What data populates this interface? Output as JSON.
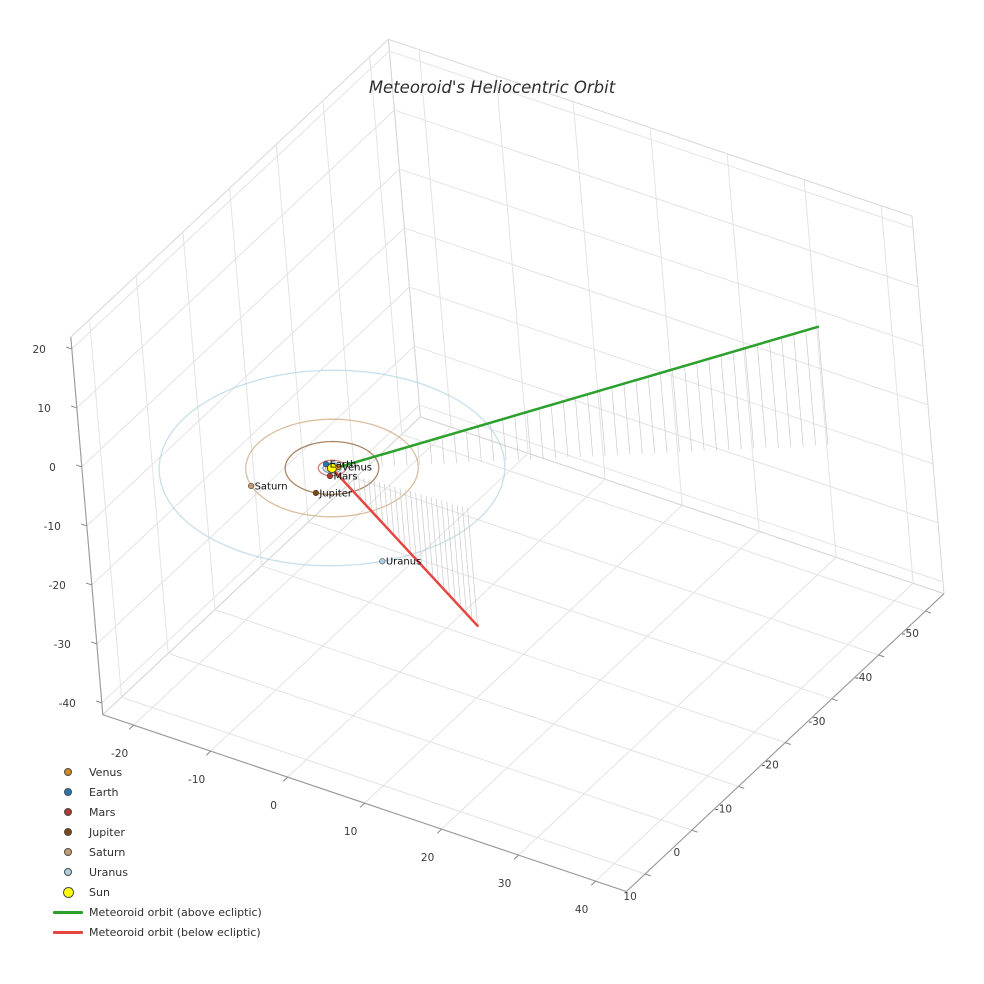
{
  "title": "Meteoroid's Heliocentric Orbit",
  "chart_data": {
    "type": "line",
    "projection": "3d",
    "title": "Meteoroid's Heliocentric Orbit",
    "grid": true,
    "axes": {
      "x": {
        "ticks": [
          -20,
          -10,
          0,
          10,
          20,
          30,
          40
        ],
        "range": [
          -24,
          44
        ]
      },
      "y": {
        "ticks": [
          -50,
          -40,
          -30,
          -20,
          -10,
          0,
          10
        ],
        "range": [
          -54,
          14
        ]
      },
      "z": {
        "ticks": [
          -40,
          -30,
          -20,
          -10,
          0,
          10,
          20
        ],
        "range": [
          -42,
          22
        ]
      }
    },
    "sun": {
      "name": "Sun",
      "color": "#ffff00",
      "position": [
        0,
        0,
        0
      ]
    },
    "planets": [
      {
        "name": "Jupiter",
        "color": "#7b4a12",
        "orbit_radius": 5.2,
        "position": [
          1.0,
          5.1,
          0
        ]
      },
      {
        "name": "Saturn",
        "color": "#c69c6d",
        "orbit_radius": 9.58,
        "position": [
          -5.9,
          7.6,
          0
        ]
      },
      {
        "name": "Uranus",
        "color": "#a9cfe0",
        "orbit_radius": 19.2,
        "position": [
          14.3,
          12.8,
          0
        ]
      },
      {
        "name": "Earth",
        "color": "#1f77b4",
        "orbit_radius": 1.0,
        "position": [
          -0.95,
          -0.3,
          0
        ]
      },
      {
        "name": "Mars",
        "color": "#b03a2e",
        "orbit_radius": 1.52,
        "position": [
          0.62,
          1.46,
          0
        ]
      },
      {
        "name": "Venus",
        "color": "#d4881e",
        "orbit_radius": 0.72,
        "position": [
          0.5,
          -0.55,
          0
        ]
      }
    ],
    "meteoroid": {
      "above": {
        "label": "Meteoroid orbit (above ecliptic)",
        "color": "#2ca02c",
        "start": [
          0.2,
          0.15,
          0.05
        ],
        "end": [
          45,
          -32,
          20
        ],
        "samples": 40
      },
      "below": {
        "label": "Meteoroid orbit (below ecliptic)",
        "color": "#e64540",
        "start": [
          0.1,
          0.05,
          -0.1
        ],
        "end": [
          17,
          -1,
          -20
        ],
        "samples": 26
      }
    },
    "drop_lines": {
      "color": "#c6c6c6",
      "to_plane_z": 0
    }
  },
  "legend": {
    "items": [
      {
        "key": "venus",
        "type": "marker",
        "color": "#d4881e",
        "size": 8,
        "label": "Venus"
      },
      {
        "key": "earth",
        "type": "marker",
        "color": "#1f77b4",
        "size": 8,
        "label": "Earth"
      },
      {
        "key": "mars",
        "type": "marker",
        "color": "#b03a2e",
        "size": 8,
        "label": "Mars"
      },
      {
        "key": "jupiter",
        "type": "marker",
        "color": "#7b4a12",
        "size": 8,
        "label": "Jupiter"
      },
      {
        "key": "saturn",
        "type": "marker",
        "color": "#c69c6d",
        "size": 8,
        "label": "Saturn"
      },
      {
        "key": "uranus",
        "type": "marker",
        "color": "#a9cfe0",
        "size": 8,
        "label": "Uranus"
      },
      {
        "key": "sun",
        "type": "marker",
        "color": "#ffff00",
        "size": 11,
        "label": "Sun"
      },
      {
        "key": "meteoroid-above",
        "type": "line",
        "color": "#2ca02c",
        "label": "Meteoroid orbit (above ecliptic)"
      },
      {
        "key": "meteoroid-below",
        "type": "line",
        "color": "#e64540",
        "label": "Meteoroid orbit (below ecliptic)"
      }
    ]
  }
}
